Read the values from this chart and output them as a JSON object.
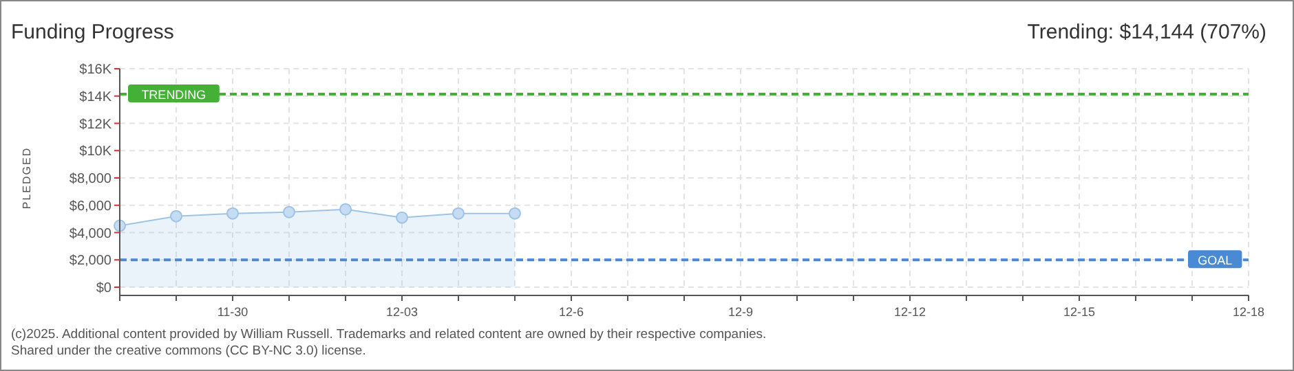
{
  "chart_data": {
    "type": "area",
    "title": "Funding Progress",
    "ylabel": "PLEDGED",
    "annotations": [
      "Trending: $14,144 (707%)",
      "(c)2025. Additional content provided by William Russell. Trademarks and related content are owned by their respective companies.",
      "Shared under the creative commons (CC BY-NC 3.0) license."
    ],
    "x": [
      "--11-28",
      "--11-29",
      "--11-30",
      "--12-01",
      "--12-02",
      "--12-03",
      "--12-04",
      "--12-05"
    ],
    "series": [
      {
        "color": "#9dc3e6",
        "values": [
          4500,
          5200,
          5400,
          5500,
          5700,
          5100,
          5400,
          5400
        ]
      }
    ],
    "marker": "circle",
    "grid": true,
    "xlim": [
      "--11-28",
      "--12-18"
    ],
    "xticks": [
      {
        "value": "--11-28",
        "label": null
      },
      {
        "value": "--11-29",
        "label": null
      },
      {
        "value": "--11-30",
        "label": "11-30"
      },
      {
        "value": "--12-01",
        "label": null
      },
      {
        "value": "--12-02",
        "label": null
      },
      {
        "value": "--12-03",
        "label": "12-03"
      },
      {
        "value": "--12-04",
        "label": null
      },
      {
        "value": "--12-05",
        "label": null
      },
      {
        "value": "--12-06",
        "label": "12-6"
      },
      {
        "value": "--12-07",
        "label": null
      },
      {
        "value": "--12-08",
        "label": null
      },
      {
        "value": "--12-09",
        "label": "12-9"
      },
      {
        "value": "--12-10",
        "label": null
      },
      {
        "value": "--12-11",
        "label": null
      },
      {
        "value": "--12-12",
        "label": "12-12"
      },
      {
        "value": "--12-13",
        "label": null
      },
      {
        "value": "--12-14",
        "label": null
      },
      {
        "value": "--12-15",
        "label": "12-15"
      },
      {
        "value": "--12-16",
        "label": null
      },
      {
        "value": "--12-17",
        "label": null
      },
      {
        "value": "--12-18",
        "label": "12-18"
      }
    ],
    "ylim": [
      0,
      16000
    ],
    "yticks": [
      {
        "value": 0,
        "label": "$0"
      },
      {
        "value": 2000,
        "label": "$2,000"
      },
      {
        "value": 4000,
        "label": "$4,000"
      },
      {
        "value": 6000,
        "label": "$6,000"
      },
      {
        "value": 8000,
        "label": "$8,000"
      },
      {
        "value": 10000,
        "label": "$10K"
      },
      {
        "value": 12000,
        "label": "$12K"
      },
      {
        "value": 14000,
        "label": "$14K"
      },
      {
        "value": 16000,
        "label": "$16K"
      }
    ],
    "ref_lines": [
      {
        "axis": "y",
        "value": 14144,
        "label": "TRENDING",
        "color": "#44b035",
        "line_style": "dashed"
      },
      {
        "axis": "y",
        "value": 2000,
        "label": "GOAL",
        "color": "#4a8ad4",
        "line_style": "dashed"
      }
    ]
  }
}
